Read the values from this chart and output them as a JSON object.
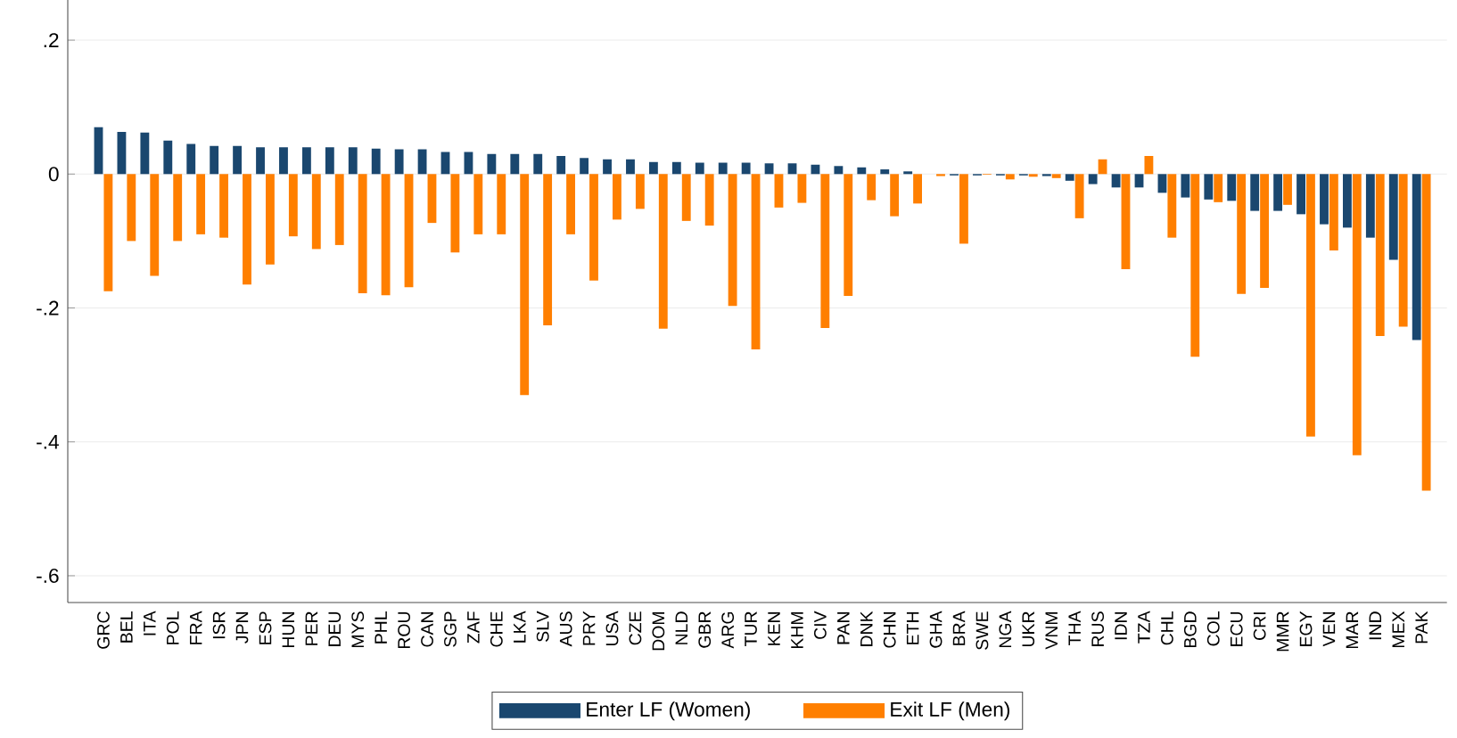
{
  "chart_data": {
    "type": "bar",
    "categories": [
      "GRC",
      "BEL",
      "ITA",
      "POL",
      "FRA",
      "ISR",
      "JPN",
      "ESP",
      "HUN",
      "PER",
      "DEU",
      "MYS",
      "PHL",
      "ROU",
      "CAN",
      "SGP",
      "ZAF",
      "CHE",
      "LKA",
      "SLV",
      "AUS",
      "PRY",
      "USA",
      "CZE",
      "DOM",
      "NLD",
      "GBR",
      "ARG",
      "TUR",
      "KEN",
      "KHM",
      "CIV",
      "PAN",
      "DNK",
      "CHN",
      "ETH",
      "GHA",
      "BRA",
      "SWE",
      "NGA",
      "UKR",
      "VNM",
      "THA",
      "RUS",
      "IDN",
      "TZA",
      "CHL",
      "BGD",
      "COL",
      "ECU",
      "CRI",
      "MMR",
      "EGY",
      "VEN",
      "MAR",
      "IND",
      "MEX",
      "PAK"
    ],
    "series": [
      {
        "name": "Enter LF (Women)",
        "color": "#1a476f",
        "values": [
          0.07,
          0.063,
          0.062,
          0.05,
          0.045,
          0.042,
          0.042,
          0.04,
          0.04,
          0.04,
          0.04,
          0.04,
          0.038,
          0.037,
          0.037,
          0.033,
          0.033,
          0.03,
          0.03,
          0.03,
          0.027,
          0.024,
          0.022,
          0.022,
          0.018,
          0.018,
          0.017,
          0.017,
          0.017,
          0.016,
          0.016,
          0.014,
          0.012,
          0.01,
          0.007,
          0.004,
          null,
          -0.002,
          -0.002,
          -0.002,
          -0.002,
          -0.003,
          -0.01,
          -0.015,
          -0.02,
          -0.02,
          -0.028,
          -0.035,
          -0.038,
          -0.04,
          -0.055,
          -0.055,
          -0.06,
          -0.075,
          -0.08,
          -0.095,
          -0.128,
          -0.248
        ]
      },
      {
        "name": "Exit LF (Men)",
        "color": "#ff7f00",
        "values": [
          -0.175,
          -0.1,
          -0.152,
          -0.1,
          -0.09,
          -0.095,
          -0.165,
          -0.135,
          -0.093,
          -0.112,
          -0.106,
          -0.178,
          -0.181,
          -0.169,
          -0.073,
          -0.117,
          -0.09,
          -0.09,
          -0.33,
          -0.226,
          -0.09,
          -0.159,
          -0.068,
          -0.052,
          -0.231,
          -0.07,
          -0.077,
          -0.197,
          -0.262,
          -0.05,
          -0.043,
          -0.23,
          -0.182,
          -0.039,
          -0.063,
          -0.044,
          -0.003,
          -0.104,
          -0.001,
          -0.008,
          -0.004,
          -0.006,
          -0.066,
          0.022,
          -0.142,
          0.027,
          -0.095,
          -0.273,
          -0.042,
          -0.179,
          -0.17,
          -0.046,
          -0.392,
          -0.114,
          -0.42,
          -0.242,
          -0.228,
          -0.473
        ]
      }
    ],
    "ylim": [
      -0.64,
      0.26
    ],
    "yticks": [
      {
        "value": -0.6,
        "label": "-.6"
      },
      {
        "value": -0.4,
        "label": "-.4"
      },
      {
        "value": -0.2,
        "label": "-.2"
      },
      0,
      {
        "value": 0.2,
        "label": ".2"
      }
    ],
    "grid": "y",
    "legend": "bottom"
  }
}
